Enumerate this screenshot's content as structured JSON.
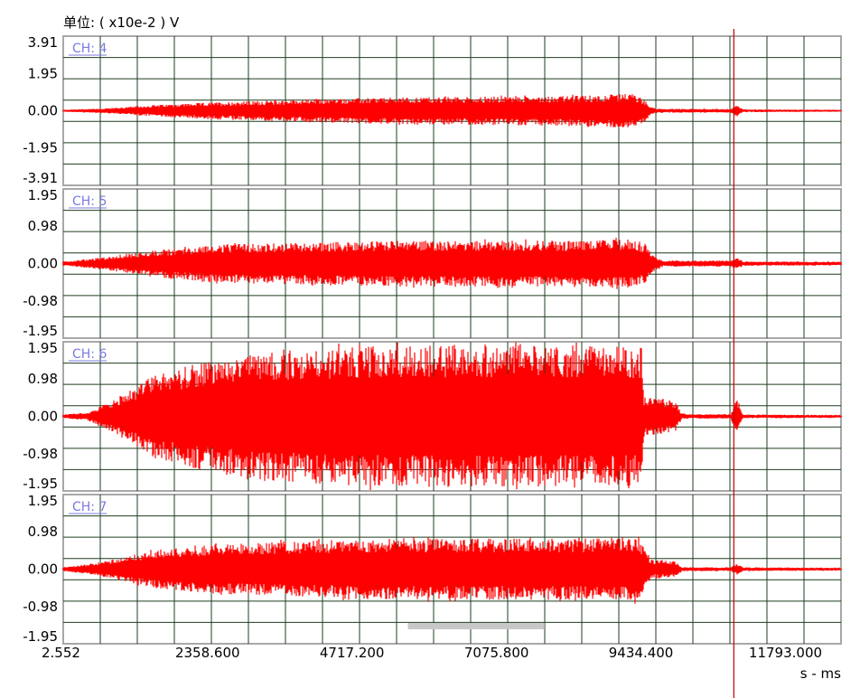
{
  "unit_label": "单位: ( x10e-2 ) V",
  "x_unit_label": "s - ms",
  "colors": {
    "signal": "#ff0000",
    "grid": "#1f3d1f",
    "panel_border": "#a8a8a8",
    "channel_label": "#7a7ae0",
    "cursor": "#c00000",
    "scrollbar": "#c8c8c8"
  },
  "cursor_x_ms": 10950,
  "scroll_window_ms": [
    5630,
    7860
  ],
  "chart_data": {
    "type": "line",
    "title": "",
    "xlabel": "s - ms",
    "ylabel": "( x10e-2 ) V",
    "xlim": [
      2.552,
      12700
    ],
    "x_ticks": [
      2.552,
      2358.6,
      4717.2,
      7075.8,
      9434.4,
      11793.0
    ],
    "x_tick_labels": [
      "2.552",
      "2358.600",
      "4717.200",
      "7075.800",
      "9434.400",
      "11793.000"
    ],
    "grid": true,
    "series": [
      {
        "name": "CH: 4",
        "ylim": [
          -3.91,
          3.91
        ],
        "y_ticks": [
          3.91,
          1.95,
          0.0,
          -1.95,
          -3.91
        ],
        "y_tick_labels": [
          "3.91",
          "1.95",
          "0.00",
          "-1.95",
          "-3.91"
        ],
        "envelope": {
          "x": [
            0,
            800,
            1500,
            2500,
            4000,
            5500,
            7000,
            8500,
            9300,
            9500,
            9600,
            9700,
            10900,
            11000,
            11100,
            12700
          ],
          "amp": [
            0.05,
            0.15,
            0.3,
            0.45,
            0.6,
            0.7,
            0.75,
            0.8,
            0.9,
            0.55,
            0.2,
            0.1,
            0.1,
            0.3,
            0.08,
            0.05
          ]
        }
      },
      {
        "name": "CH: 5",
        "ylim": [
          -1.95,
          1.95
        ],
        "y_ticks": [
          1.95,
          0.98,
          0.0,
          -0.98,
          -1.95
        ],
        "y_tick_labels": [
          "1.95",
          "0.98",
          "0.00",
          "-0.98",
          "-1.95"
        ],
        "envelope": {
          "x": [
            0,
            600,
            1500,
            2500,
            4000,
            5500,
            7000,
            8500,
            9300,
            9500,
            9650,
            9800,
            10900,
            11000,
            11100,
            12700
          ],
          "amp": [
            0.05,
            0.15,
            0.35,
            0.5,
            0.55,
            0.6,
            0.6,
            0.6,
            0.65,
            0.5,
            0.2,
            0.08,
            0.08,
            0.15,
            0.06,
            0.05
          ]
        }
      },
      {
        "name": "CH: 6",
        "ylim": [
          -1.95,
          1.95
        ],
        "y_ticks": [
          1.95,
          0.98,
          0.0,
          -0.98,
          -1.95
        ],
        "y_tick_labels": [
          "1.95",
          "0.98",
          "0.00",
          "-0.98",
          "-1.95"
        ],
        "envelope": {
          "x": [
            0,
            400,
            800,
            1500,
            2500,
            3500,
            4500,
            6000,
            7500,
            9000,
            9450,
            9480,
            9550,
            10000,
            10100,
            10200,
            10900,
            11000,
            11100,
            12700
          ],
          "amp": [
            0.05,
            0.1,
            0.4,
            1.1,
            1.5,
            1.7,
            1.8,
            1.85,
            1.85,
            1.85,
            1.8,
            0.5,
            0.5,
            0.4,
            0.08,
            0.06,
            0.06,
            0.5,
            0.05,
            0.04
          ]
        }
      },
      {
        "name": "CH: 7",
        "ylim": [
          -1.95,
          1.95
        ],
        "y_ticks": [
          1.95,
          0.98,
          0.0,
          -0.98,
          -1.95
        ],
        "y_tick_labels": [
          "1.95",
          "0.98",
          "0.00",
          "-0.98",
          "-1.95"
        ],
        "envelope": {
          "x": [
            0,
            500,
            1500,
            2500,
            4000,
            5500,
            7000,
            8500,
            9400,
            9500,
            9600,
            10000,
            10100,
            10200,
            10900,
            11000,
            11100,
            12700
          ],
          "amp": [
            0.05,
            0.15,
            0.5,
            0.65,
            0.75,
            0.8,
            0.8,
            0.8,
            0.85,
            0.5,
            0.25,
            0.2,
            0.06,
            0.05,
            0.05,
            0.15,
            0.05,
            0.04
          ]
        }
      }
    ]
  }
}
